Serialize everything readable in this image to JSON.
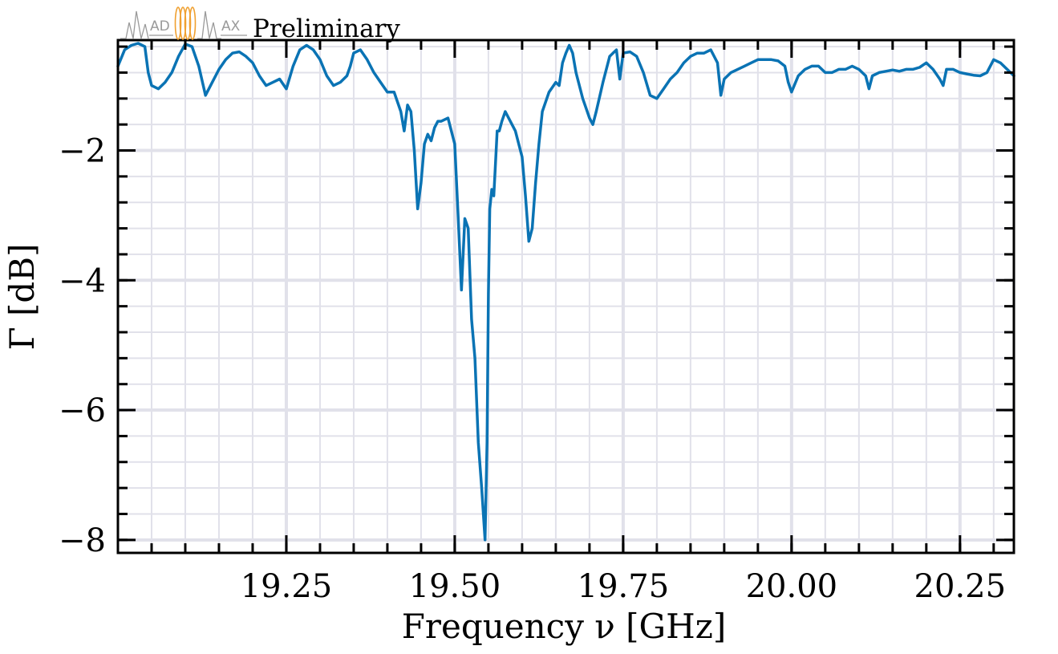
{
  "header": {
    "logo_left": "AD",
    "logo_right": "AX",
    "watermark": "Preliminary"
  },
  "colors": {
    "series": "#0A73B4",
    "grid": "#e1e1ea",
    "logo_gray": "#9a9a9a",
    "logo_orange": "#f0a030"
  },
  "chart_data": {
    "type": "line",
    "xlabel": "Frequency ν [GHz]",
    "ylabel": "Γ [dB]",
    "xlim": [
      19.0,
      20.33
    ],
    "ylim": [
      -8.2,
      -0.3
    ],
    "xticks": [
      19.25,
      19.5,
      19.75,
      20.0,
      20.25
    ],
    "xtick_labels": [
      "19.25",
      "19.50",
      "19.75",
      "20.00",
      "20.25"
    ],
    "yticks": [
      -2,
      -4,
      -6,
      -8
    ],
    "ytick_labels": [
      "−2",
      "−4",
      "−6",
      "−8"
    ],
    "grid": true,
    "series": [
      {
        "x": [
          19.0,
          19.01,
          19.02,
          19.03,
          19.04,
          19.045,
          19.05,
          19.06,
          19.07,
          19.08,
          19.09,
          19.1,
          19.11,
          19.12,
          19.13,
          19.14,
          19.15,
          19.16,
          19.17,
          19.18,
          19.19,
          19.2,
          19.21,
          19.22,
          19.23,
          19.24,
          19.25,
          19.26,
          19.27,
          19.28,
          19.29,
          19.3,
          19.31,
          19.32,
          19.33,
          19.34,
          19.345,
          19.35,
          19.36,
          19.37,
          19.38,
          19.39,
          19.4,
          19.41,
          19.42,
          19.425,
          19.43,
          19.435,
          19.44,
          19.445,
          19.45,
          19.455,
          19.46,
          19.465,
          19.47,
          19.475,
          19.48,
          19.49,
          19.5,
          19.505,
          19.51,
          19.515,
          19.52,
          19.525,
          19.53,
          19.535,
          19.54,
          19.545,
          19.548,
          19.55,
          19.552,
          19.555,
          19.558,
          19.56,
          19.563,
          19.566,
          19.57,
          19.575,
          19.58,
          19.59,
          19.6,
          19.605,
          19.61,
          19.615,
          19.62,
          19.625,
          19.63,
          19.64,
          19.65,
          19.655,
          19.66,
          19.665,
          19.67,
          19.675,
          19.68,
          19.69,
          19.7,
          19.705,
          19.71,
          19.72,
          19.73,
          19.74,
          19.745,
          19.75,
          19.76,
          19.77,
          19.78,
          19.79,
          19.8,
          19.81,
          19.82,
          19.83,
          19.84,
          19.85,
          19.86,
          19.87,
          19.88,
          19.89,
          19.895,
          19.9,
          19.91,
          19.92,
          19.93,
          19.94,
          19.95,
          19.96,
          19.97,
          19.98,
          19.99,
          19.995,
          20.0,
          20.01,
          20.02,
          20.03,
          20.04,
          20.05,
          20.06,
          20.07,
          20.08,
          20.09,
          20.1,
          20.11,
          20.115,
          20.12,
          20.13,
          20.14,
          20.15,
          20.16,
          20.17,
          20.18,
          20.19,
          20.2,
          20.21,
          20.22,
          20.225,
          20.23,
          20.24,
          20.25,
          20.26,
          20.27,
          20.28,
          20.29,
          20.3,
          20.31,
          20.32,
          20.33
        ],
        "values": [
          -0.7,
          -0.45,
          -0.38,
          -0.35,
          -0.4,
          -0.8,
          -1.0,
          -1.05,
          -0.95,
          -0.8,
          -0.55,
          -0.36,
          -0.4,
          -0.7,
          -1.15,
          -0.95,
          -0.75,
          -0.6,
          -0.5,
          -0.48,
          -0.55,
          -0.65,
          -0.85,
          -1.0,
          -0.95,
          -0.9,
          -1.05,
          -0.7,
          -0.45,
          -0.38,
          -0.45,
          -0.6,
          -0.85,
          -1.0,
          -0.95,
          -0.85,
          -0.7,
          -0.5,
          -0.45,
          -0.6,
          -0.8,
          -0.95,
          -1.1,
          -1.1,
          -1.4,
          -1.7,
          -1.3,
          -1.4,
          -2.0,
          -2.9,
          -2.5,
          -1.9,
          -1.75,
          -1.85,
          -1.65,
          -1.55,
          -1.55,
          -1.5,
          -1.9,
          -3.0,
          -4.15,
          -3.05,
          -3.2,
          -4.6,
          -5.2,
          -6.5,
          -7.2,
          -8.0,
          -6.5,
          -4.2,
          -2.9,
          -2.6,
          -2.7,
          -2.3,
          -1.7,
          -1.7,
          -1.55,
          -1.4,
          -1.5,
          -1.7,
          -2.1,
          -2.7,
          -3.4,
          -3.2,
          -2.5,
          -1.9,
          -1.4,
          -1.1,
          -0.95,
          -1.0,
          -0.65,
          -0.5,
          -0.38,
          -0.5,
          -0.8,
          -1.2,
          -1.5,
          -1.6,
          -1.4,
          -0.95,
          -0.55,
          -0.45,
          -0.9,
          -0.5,
          -0.48,
          -0.55,
          -0.8,
          -1.15,
          -1.2,
          -1.05,
          -0.9,
          -0.8,
          -0.65,
          -0.55,
          -0.5,
          -0.5,
          -0.45,
          -0.65,
          -1.15,
          -0.9,
          -0.8,
          -0.75,
          -0.7,
          -0.65,
          -0.6,
          -0.6,
          -0.6,
          -0.62,
          -0.7,
          -0.95,
          -1.1,
          -0.85,
          -0.75,
          -0.7,
          -0.7,
          -0.8,
          -0.8,
          -0.75,
          -0.75,
          -0.7,
          -0.75,
          -0.85,
          -1.05,
          -0.85,
          -0.8,
          -0.78,
          -0.76,
          -0.78,
          -0.75,
          -0.75,
          -0.72,
          -0.65,
          -0.75,
          -0.9,
          -1.0,
          -0.75,
          -0.75,
          -0.8,
          -0.82,
          -0.84,
          -0.85,
          -0.8,
          -0.6,
          -0.65,
          -0.75,
          -0.85
        ]
      }
    ]
  }
}
